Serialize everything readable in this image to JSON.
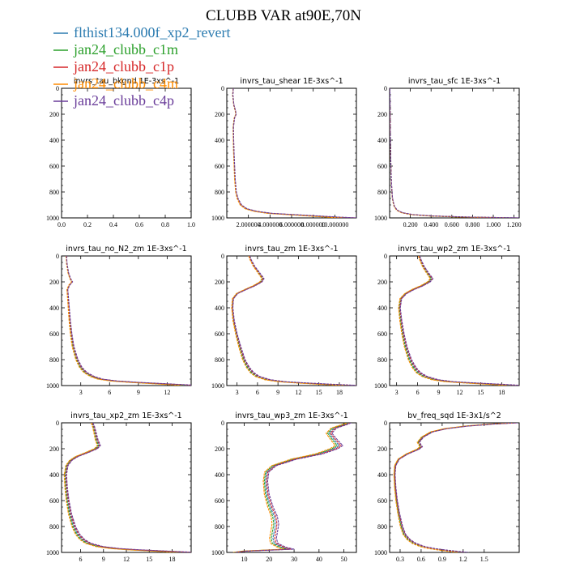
{
  "title": "CLUBB VAR at90E,70N",
  "series": [
    {
      "name": "flthist134.000f_xp2_revert",
      "color": "#2b7bb0"
    },
    {
      "name": "jan24_clubb_c1m",
      "color": "#2ca02c"
    },
    {
      "name": "jan24_clubb_c1p",
      "color": "#d62728"
    },
    {
      "name": "jan24_clubb_c4m",
      "color": "#ff8c00"
    },
    {
      "name": "jan24_clubb_c4p",
      "color": "#6a3d9a"
    }
  ],
  "chart_data": [
    {
      "type": "line",
      "title": "invrs_tau_bkgnd   1E-3xs^-1",
      "xlim": [
        0,
        1
      ],
      "ylim": [
        1000,
        0
      ],
      "xticks": [
        0,
        0.2,
        0.4,
        0.6,
        0.8,
        1.0
      ],
      "xticklabels": [
        "0.0",
        "0.2",
        "0.4",
        "0.6",
        "0.8",
        "1.0"
      ],
      "yticks": [
        0,
        200,
        400,
        600,
        800,
        1000
      ],
      "yticklabels": [
        "0",
        "200",
        "400",
        "600",
        "800",
        "1000"
      ],
      "base": {
        "y": [],
        "x": []
      }
    },
    {
      "type": "line",
      "title": "invrs_tau_shear   1E-3xs^-1",
      "xlim": [
        0,
        12000000
      ],
      "ylim": [
        1000,
        0
      ],
      "xticks": [
        2000000,
        4000000,
        6000000,
        8000000,
        10000000
      ],
      "xticklabels": [
        "2.000000",
        "4.000000",
        "6.000000",
        "8.000000",
        "10.000000"
      ],
      "yticks": [
        0,
        200,
        400,
        600,
        800,
        1000
      ],
      "yticklabels": [
        "0",
        "200",
        "400",
        "600",
        "800",
        "1000"
      ],
      "base": {
        "y": [
          0,
          50,
          130,
          175,
          200,
          230,
          300,
          400,
          500,
          600,
          700,
          800,
          850,
          900,
          930,
          950,
          965,
          975,
          985,
          995,
          1000
        ],
        "x": [
          600000,
          550000,
          650000,
          800000,
          850000,
          700000,
          600000,
          620000,
          650000,
          700000,
          750000,
          850000,
          1000000,
          1300000,
          1800000,
          2700000,
          4000000,
          6000000,
          8000000,
          10000000,
          11500000
        ]
      },
      "jitter": 0.05
    },
    {
      "type": "line",
      "title": "invrs_tau_sfc   1E-3xs^-1",
      "xlim": [
        0,
        1.25
      ],
      "ylim": [
        1000,
        0
      ],
      "xticks": [
        0.2,
        0.4,
        0.6,
        0.8,
        1.0,
        1.2
      ],
      "xticklabels": [
        "0.200",
        "0.400",
        "0.600",
        "0.800",
        "1.000",
        "1.200"
      ],
      "yticks": [
        0,
        200,
        400,
        600,
        800,
        1000
      ],
      "yticklabels": [
        "0",
        "200",
        "400",
        "600",
        "800",
        "1000"
      ],
      "base": {
        "y": [
          0,
          200,
          400,
          600,
          700,
          800,
          850,
          880,
          910,
          940,
          960,
          975,
          985,
          993,
          1000
        ],
        "x": [
          0.003,
          0.005,
          0.008,
          0.012,
          0.016,
          0.022,
          0.028,
          0.035,
          0.045,
          0.07,
          0.12,
          0.22,
          0.4,
          0.7,
          1.2
        ]
      },
      "jitter": 0.05
    },
    {
      "type": "line",
      "title": "invrs_tau_no_N2_zm   1E-3xs^-1",
      "xlim": [
        1,
        14.5
      ],
      "ylim": [
        1000,
        0
      ],
      "xticks": [
        3,
        6,
        9,
        12
      ],
      "xticklabels": [
        "3",
        "6",
        "9",
        "12"
      ],
      "yticks": [
        0,
        200,
        400,
        600,
        800,
        1000
      ],
      "yticklabels": [
        "0",
        "200",
        "400",
        "600",
        "800",
        "1000"
      ],
      "base": {
        "y": [
          0,
          60,
          130,
          175,
          200,
          225,
          260,
          300,
          400,
          500,
          600,
          700,
          800,
          860,
          900,
          930,
          950,
          965,
          975,
          985,
          995,
          1000
        ],
        "x": [
          1.5,
          1.55,
          1.7,
          1.9,
          2.1,
          1.8,
          1.6,
          1.65,
          1.75,
          1.85,
          2.0,
          2.2,
          2.6,
          3.0,
          3.5,
          4.2,
          5.0,
          6.5,
          8.5,
          11.0,
          13.5,
          14.4
        ]
      },
      "jitter": 0.05
    },
    {
      "type": "line",
      "title": "invrs_tau_zm   1E-3xs^-1",
      "xlim": [
        1.5,
        20.5
      ],
      "ylim": [
        1000,
        0
      ],
      "xticks": [
        3,
        6,
        9,
        12,
        15,
        18
      ],
      "xticklabels": [
        "3",
        "6",
        "9",
        "12",
        "15",
        "18"
      ],
      "yticks": [
        0,
        200,
        400,
        600,
        800,
        1000
      ],
      "yticklabels": [
        "0",
        "200",
        "400",
        "600",
        "800",
        "1000"
      ],
      "base": {
        "y": [
          0,
          30,
          80,
          130,
          175,
          200,
          230,
          260,
          290,
          330,
          400,
          500,
          600,
          700,
          800,
          860,
          900,
          930,
          955,
          970,
          980,
          990,
          1000
        ],
        "x": [
          4.8,
          5.0,
          5.5,
          6.2,
          6.8,
          6.5,
          5.5,
          4.2,
          3.0,
          2.4,
          2.3,
          2.5,
          2.9,
          3.4,
          4.0,
          4.6,
          5.2,
          6.0,
          7.5,
          9.5,
          12.5,
          16.0,
          20.0
        ]
      },
      "jitter": 0.05
    },
    {
      "type": "line",
      "title": "invrs_tau_wp2_zm   1E-3xs^-1",
      "xlim": [
        2,
        20.5
      ],
      "ylim": [
        1000,
        0
      ],
      "xticks": [
        3,
        6,
        9,
        12,
        15,
        18
      ],
      "xticklabels": [
        "3",
        "6",
        "9",
        "12",
        "15",
        "18"
      ],
      "yticks": [
        0,
        200,
        400,
        600,
        800,
        1000
      ],
      "yticklabels": [
        "0",
        "200",
        "400",
        "600",
        "800",
        "1000"
      ],
      "base": {
        "y": [
          0,
          30,
          80,
          130,
          175,
          200,
          230,
          260,
          290,
          330,
          400,
          500,
          600,
          700,
          800,
          860,
          900,
          930,
          955,
          970,
          980,
          990,
          1000
        ],
        "x": [
          6.2,
          6.4,
          6.8,
          7.4,
          8.0,
          7.6,
          6.6,
          5.3,
          4.3,
          3.6,
          3.4,
          3.6,
          3.9,
          4.3,
          4.9,
          5.5,
          6.1,
          7.0,
          8.5,
          10.5,
          13.5,
          17.0,
          20.0
        ]
      },
      "jitter": 0.05
    },
    {
      "type": "line",
      "title": "invrs_tau_xp2_zm   1E-3xs^-1",
      "xlim": [
        3.5,
        20.5
      ],
      "ylim": [
        1000,
        0
      ],
      "xticks": [
        6,
        9,
        12,
        15,
        18
      ],
      "xticklabels": [
        "6",
        "9",
        "12",
        "15",
        "18"
      ],
      "yticks": [
        0,
        200,
        400,
        600,
        800,
        1000
      ],
      "yticklabels": [
        "0",
        "200",
        "400",
        "600",
        "800",
        "1000"
      ],
      "base": {
        "y": [
          0,
          30,
          80,
          130,
          175,
          200,
          230,
          260,
          290,
          330,
          400,
          500,
          600,
          700,
          800,
          860,
          900,
          930,
          955,
          970,
          980,
          990,
          1000
        ],
        "x": [
          7.5,
          7.7,
          7.9,
          8.1,
          8.4,
          8.0,
          6.8,
          5.5,
          4.7,
          4.2,
          4.0,
          4.1,
          4.3,
          4.6,
          5.1,
          5.6,
          6.2,
          7.0,
          8.5,
          10.5,
          13.0,
          16.5,
          20.0
        ]
      },
      "jitter": 0.05
    },
    {
      "type": "line",
      "title": "invrs_tau_wp3_zm   1E-3xs^-1",
      "xlim": [
        3,
        55
      ],
      "ylim": [
        1000,
        0
      ],
      "xticks": [
        10,
        20,
        30,
        40,
        50
      ],
      "xticklabels": [
        "10",
        "20",
        "30",
        "40",
        "50"
      ],
      "yticks": [
        0,
        200,
        400,
        600,
        800,
        1000
      ],
      "yticklabels": [
        "0",
        "200",
        "400",
        "600",
        "800",
        "1000"
      ],
      "base": {
        "y": [
          0,
          15,
          40,
          80,
          130,
          175,
          200,
          240,
          280,
          330,
          380,
          450,
          550,
          650,
          720,
          780,
          840,
          890,
          930,
          960,
          975,
          990,
          1000
        ],
        "x": [
          52,
          50,
          46,
          44,
          46,
          48,
          46,
          40,
          30,
          22,
          19,
          18.5,
          19,
          20.5,
          22,
          22.5,
          22,
          21.5,
          22,
          25,
          28,
          10,
          6
        ]
      },
      "jitter": 0.06
    },
    {
      "type": "line",
      "title": "bv_freq_sqd   1E-3x1/s^2",
      "xlim": [
        0.15,
        2.0
      ],
      "ylim": [
        1000,
        0
      ],
      "xticks": [
        0.3,
        0.6,
        0.9,
        1.2,
        1.5
      ],
      "xticklabels": [
        "0.3",
        "0.6",
        "0.9",
        "1.2",
        "1.5"
      ],
      "yticks": [
        0,
        200,
        400,
        600,
        800,
        1000
      ],
      "yticklabels": [
        "0",
        "200",
        "400",
        "600",
        "800",
        "1000"
      ],
      "base": {
        "y": [
          0,
          10,
          25,
          45,
          70,
          110,
          150,
          185,
          205,
          240,
          280,
          330,
          400,
          500,
          600,
          700,
          800,
          860,
          900,
          930,
          955,
          970,
          985,
          1000
        ],
        "x": [
          1.95,
          1.6,
          1.25,
          0.95,
          0.75,
          0.62,
          0.56,
          0.6,
          0.55,
          0.4,
          0.28,
          0.23,
          0.22,
          0.23,
          0.25,
          0.28,
          0.32,
          0.36,
          0.42,
          0.5,
          0.62,
          0.75,
          0.95,
          1.2
        ]
      },
      "jitter": 0.05
    }
  ]
}
